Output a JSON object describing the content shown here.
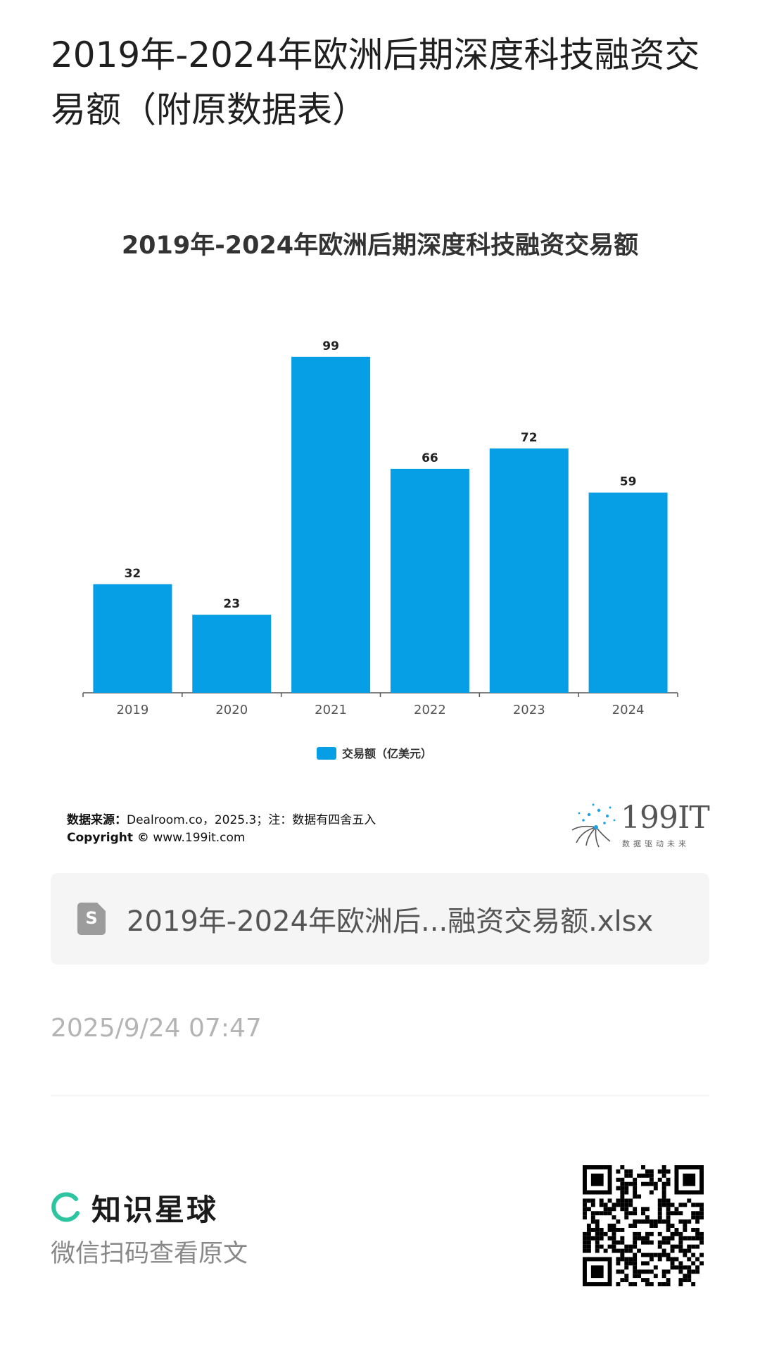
{
  "page": {
    "title": "2019年-2024年欧洲后期深度科技融资交易额（附原数据表）"
  },
  "chart": {
    "source_label": "数据来源：",
    "source_text": "Dealroom.co，2025.3；注：数据有四舍五入",
    "copyright_label": "Copyright ©",
    "copyright_text": " www.199it.com",
    "brand_text": "199IT",
    "brand_slogan": "数据驱动未来"
  },
  "chart_data": {
    "type": "bar",
    "title": "2019年-2024年欧洲后期深度科技融资交易额",
    "categories": [
      "2019",
      "2020",
      "2021",
      "2022",
      "2023",
      "2024"
    ],
    "series": [
      {
        "name": "交易额（亿美元）",
        "values": [
          32,
          23,
          99,
          66,
          72,
          59
        ],
        "color": "#069fe5"
      }
    ],
    "data_labels": [
      "32",
      "23",
      "99",
      "66",
      "72",
      "59"
    ],
    "ylim": [
      0,
      100
    ],
    "grid": false,
    "legend": "bottom-center"
  },
  "attachment": {
    "file_name": "2019年-2024年欧洲后...融资交易额.xlsx",
    "icon": "spreadsheet-file-icon",
    "icon_letter": "S"
  },
  "meta": {
    "timestamp": "2025/9/24 07:47"
  },
  "footer": {
    "brand_name": "知识星球",
    "scan_hint": "微信扫码查看原文",
    "accent_color": "#2ec4a0"
  }
}
